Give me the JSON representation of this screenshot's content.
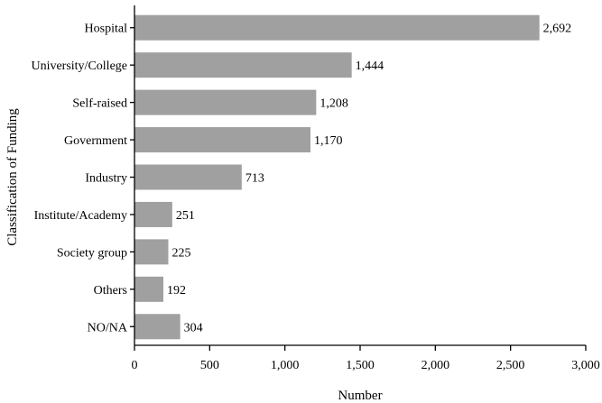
{
  "chart_data": {
    "type": "bar",
    "orientation": "horizontal",
    "categories": [
      "Hospital",
      "University/College",
      "Self-raised",
      "Government",
      "Industry",
      "Institute/Academy",
      "Society group",
      "Others",
      "NO/NA"
    ],
    "values": [
      2692,
      1444,
      1208,
      1170,
      713,
      251,
      225,
      192,
      304
    ],
    "value_labels": [
      "2,692",
      "1,444",
      "1,208",
      "1,170",
      "713",
      "251",
      "225",
      "192",
      "304"
    ],
    "xlabel": "Number",
    "ylabel": "Classification of Funding",
    "xlim": [
      0,
      3000
    ],
    "xticks": [
      0,
      500,
      1000,
      1500,
      2000,
      2500,
      3000
    ],
    "xtick_labels": [
      "0",
      "500",
      "1,000",
      "1,500",
      "2,000",
      "2,500",
      "3,000"
    ],
    "bar_color": "#a0a0a0",
    "grid": false,
    "legend": "none"
  }
}
